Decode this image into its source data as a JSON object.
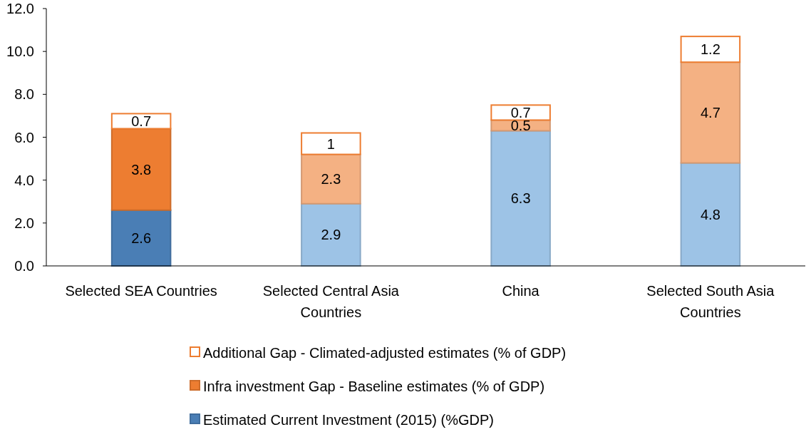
{
  "chart_data": {
    "type": "bar",
    "stacked": true,
    "categories": [
      "Selected SEA Countries",
      "Selected Central Asia Countries",
      "China",
      "Selected South Asia Countries"
    ],
    "series": [
      {
        "name": "Estimated Current Investment (2015) (%GDP)",
        "color": "#4a7eb5",
        "colors": [
          "#4a7eb5",
          "#9dc3e6",
          "#9dc3e6",
          "#9dc3e6"
        ],
        "values": [
          2.6,
          2.9,
          6.3,
          4.8
        ]
      },
      {
        "name": "Infra investment Gap - Baseline estimates (% of GDP)",
        "color": "#ed7d31",
        "colors": [
          "#ed7d31",
          "#f4b183",
          "#f4b183",
          "#f4b183"
        ],
        "values": [
          3.8,
          2.3,
          0.5,
          4.7
        ]
      },
      {
        "name": "Additional Gap - Climated-adjusted estimates (% of GDP)",
        "color": "#ffffff",
        "values": [
          0.7,
          1,
          0.7,
          1.2
        ]
      }
    ],
    "ylim": [
      0,
      12
    ],
    "yticks": [
      {
        "value": 0,
        "label": "0.0"
      },
      {
        "value": 2,
        "label": "2.0"
      },
      {
        "value": 4,
        "label": "4.0"
      },
      {
        "value": 6,
        "label": "6.0"
      },
      {
        "value": 8,
        "label": "8.0"
      },
      {
        "value": 10,
        "label": "10.0"
      },
      {
        "value": 12,
        "label": "12.0"
      }
    ],
    "data_labels": true,
    "legend": "bottom",
    "grid": false
  }
}
